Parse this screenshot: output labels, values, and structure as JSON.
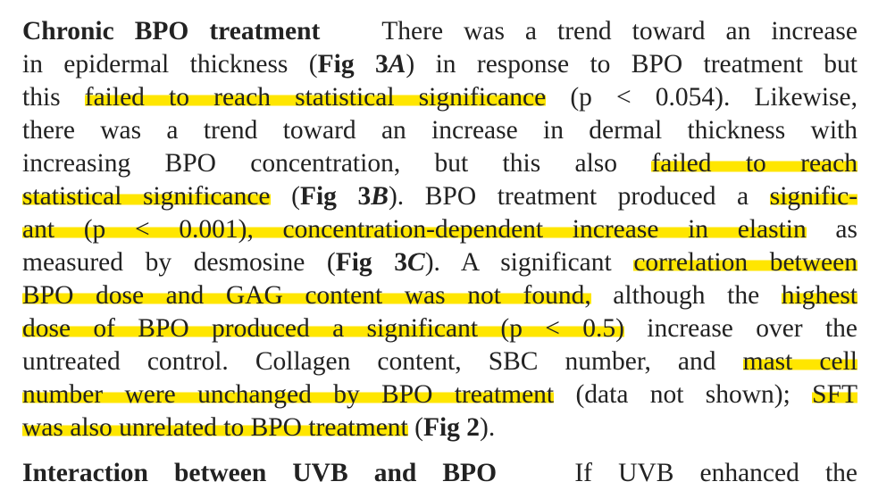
{
  "paragraph": {
    "heading": "Chronic BPO treatment",
    "lines": [
      [
        "There was a trend toward an increase"
      ],
      [
        "in epidermal thickness (",
        "Fig 3",
        "A",
        ") in response to BPO treatment but"
      ],
      [
        "this ",
        "failed to reach statistical significance",
        " (p < 0.054). Likewise,"
      ],
      [
        "there was a trend toward an increase in dermal thickness with"
      ],
      [
        "increasing BPO concentration, but this also ",
        "failed to reach"
      ],
      [
        "statistical significance",
        " (",
        "Fig 3",
        "B",
        "). BPO treatment produced a ",
        "signific-"
      ],
      [
        "ant (p < 0.001), concentration-dependent increase in elastin",
        " as"
      ],
      [
        "measured by desmosine (",
        "Fig 3",
        "C",
        "). A significant ",
        "correlation between"
      ],
      [
        "BPO dose and GAG content was not found,",
        " although the ",
        "highest"
      ],
      [
        "dose of BPO produced a significant (p < 0.5)",
        " increase over the"
      ],
      [
        "untreated control. Collagen content, SBC number, and ",
        "mast cell"
      ],
      [
        "number were unchanged by BPO treatment",
        " (data not shown); ",
        "SFT"
      ],
      [
        "was also unrelated to BPO treatment",
        " (",
        "Fig 2",
        ")."
      ]
    ],
    "next_heading": "Interaction between UVB and BPO",
    "next_text": "If UVB enhanced the"
  }
}
